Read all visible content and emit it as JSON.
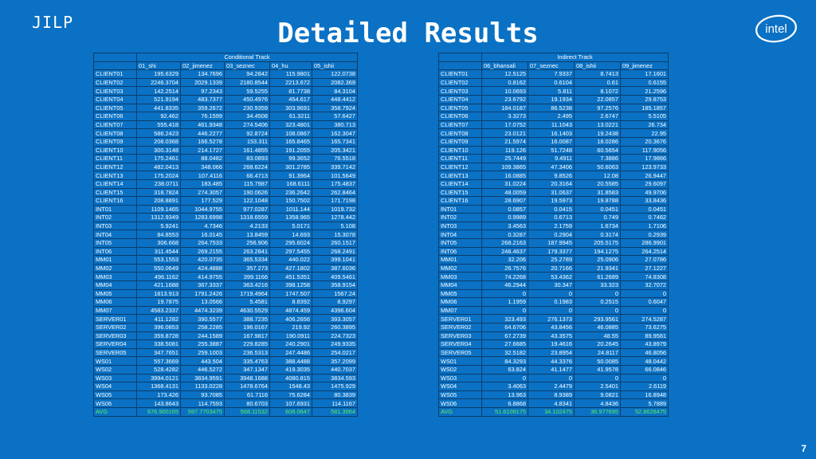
{
  "header": {
    "left_label": "JILP",
    "title": "Detailed Results",
    "logo_text": "intel",
    "page_number": "7"
  },
  "left_table": {
    "group_label": "Conditional Track",
    "columns": [
      "01_shi",
      "02_jimenez",
      "03_seznec",
      "04_hu",
      "05_ishii"
    ],
    "rows": [
      [
        "CLIENT01",
        "195.6329",
        "134.7696",
        "94.2842",
        "115.9801",
        "122.0738"
      ],
      [
        "CLIENT02",
        "2246.3704",
        "2029.1339",
        "2180.8544",
        "2213.672",
        "2082.369"
      ],
      [
        "CLIENT03",
        "142.2514",
        "97.2343",
        "59.5255",
        "81.7738",
        "84.3104"
      ],
      [
        "CLIENT04",
        "521.9194",
        "483.7377",
        "450.4976",
        "454.617",
        "448.4412"
      ],
      [
        "CLIENT05",
        "441.8335",
        "359.2672",
        "230.9359",
        "303.9691",
        "358.7924"
      ],
      [
        "CLIENT06",
        "92.462",
        "76.1599",
        "34.4508",
        "61.3211",
        "57.6427"
      ],
      [
        "CLIENT07",
        "555.418",
        "461.9348",
        "274.5406",
        "323.4801",
        "380.713"
      ],
      [
        "CLIENT08",
        "586.2423",
        "446.2277",
        "92.8724",
        "108.0867",
        "162.3047"
      ],
      [
        "CLIENT09",
        "208.0368",
        "166.5278",
        "153.311",
        "165.8465",
        "165.7341"
      ],
      [
        "CLIENT10",
        "300.3148",
        "214.1727",
        "161.4855",
        "191.2055",
        "205.3421"
      ],
      [
        "CLIENT11",
        "175.2461",
        "88.0482",
        "83.0893",
        "99.3652",
        "76.5518"
      ],
      [
        "CLIENT12",
        "482.0413",
        "348.066",
        "268.6224",
        "301.2785",
        "339.7142"
      ],
      [
        "CLIENT13",
        "175.2024",
        "107.4116",
        "66.4713",
        "91.3964",
        "101.5649"
      ],
      [
        "CLIENT14",
        "238.0711",
        "183.485",
        "115.7987",
        "168.6111",
        "175.4837"
      ],
      [
        "CLIENT15",
        "318.7824",
        "274.3057",
        "190.0626",
        "236.2642",
        "262.8464"
      ],
      [
        "CLIENT16",
        "208.8891",
        "177.529",
        "122.1048",
        "150.7502",
        "171.7198"
      ],
      [
        "INT01",
        "1109.1465",
        "1044.9755",
        "977.0287",
        "1011.144",
        "1019.732"
      ],
      [
        "INT02",
        "1312.9349",
        "1283.6998",
        "1318.6559",
        "1358.965",
        "1278.442"
      ],
      [
        "INT03",
        "5.9241",
        "4.7346",
        "4.2133",
        "5.0171",
        "5.108"
      ],
      [
        "INT04",
        "84.8553",
        "16.0145",
        "13.8459",
        "14.693",
        "15.3078"
      ],
      [
        "INT05",
        "306.668",
        "264.7533",
        "256.906",
        "295.6024",
        "260.1517"
      ],
      [
        "INT06",
        "311.4544",
        "269.2155",
        "263.2841",
        "297.5455",
        "268.2491"
      ],
      [
        "MM01",
        "553.1553",
        "420.0735",
        "365.5334",
        "440.022",
        "399.1041"
      ],
      [
        "MM02",
        "550.0649",
        "424.4888",
        "357.273",
        "427.1802",
        "387.6036"
      ],
      [
        "MM03",
        "496.1162",
        "414.9755",
        "399.1166",
        "451.5351",
        "409.5461"
      ],
      [
        "MM04",
        "421.1688",
        "367.3337",
        "363.4216",
        "398.1258",
        "358.9154"
      ],
      [
        "MM05",
        "1813.913",
        "1791.2426",
        "1719.4964",
        "1747.507",
        "1567.24"
      ],
      [
        "MM06",
        "19.7875",
        "13.0566",
        "5.4581",
        "8.8392",
        "8.9297"
      ],
      [
        "MM07",
        "4583.2337",
        "4474.3239",
        "4630.5529",
        "4874.459",
        "4396.604"
      ],
      [
        "SERVER01",
        "411.1282",
        "390.5577",
        "388.7235",
        "406.2656",
        "393.3057"
      ],
      [
        "SERVER02",
        "396.0853",
        "258.2285",
        "196.0167",
        "219.92",
        "260.3895"
      ],
      [
        "SERVER03",
        "359.8728",
        "244.1589",
        "167.9817",
        "190.0911",
        "224.7323"
      ],
      [
        "SERVER04",
        "338.5081",
        "255.3887",
        "229.8285",
        "240.2901",
        "249.9335"
      ],
      [
        "SERVER05",
        "347.7651",
        "259.1003",
        "236.5313",
        "247.4486",
        "254.0217"
      ],
      [
        "WS01",
        "557.3669",
        "443.504",
        "335.4763",
        "388.4488",
        "357.2099"
      ],
      [
        "WS02",
        "528.4282",
        "446.5272",
        "347.1347",
        "419.3035",
        "440.7037"
      ],
      [
        "WS03",
        "3994.0121",
        "3834.9591",
        "3948.1688",
        "4080.815",
        "3834.593"
      ],
      [
        "WS04",
        "1368.4131",
        "1133.0228",
        "1478.6764",
        "1548.43",
        "1475.929"
      ],
      [
        "WS05",
        "173.426",
        "93.7085",
        "61.7116",
        "75.6284",
        "80.3839"
      ],
      [
        "WS06",
        "143.8643",
        "114.7593",
        "80.6703",
        "107.6931",
        "114.1167"
      ]
    ],
    "avg": [
      "AVG",
      "676.900165",
      "597.7703475",
      "568.11532",
      "608.0647",
      "581.3964"
    ]
  },
  "right_table": {
    "group_label": "Indirect Track",
    "columns": [
      "06_bhansali",
      "07_seznec",
      "08_ishii",
      "09_jimenez"
    ],
    "rows": [
      [
        "CLIENT01",
        "12.5125",
        "7.9337",
        "8.7413",
        "17.1601"
      ],
      [
        "CLIENT02",
        "0.8162",
        "0.6104",
        "0.61",
        "0.6155"
      ],
      [
        "CLIENT03",
        "10.0693",
        "5.811",
        "8.1072",
        "21.2596"
      ],
      [
        "CLIENT04",
        "23.6792",
        "19.1934",
        "22.0857",
        "29.8753"
      ],
      [
        "CLIENT05",
        "184.0187",
        "86.5238",
        "97.2576",
        "185.1857"
      ],
      [
        "CLIENT06",
        "3.3273",
        "2.495",
        "2.6747",
        "5.5105"
      ],
      [
        "CLIENT07",
        "17.0752",
        "11.1043",
        "13.0221",
        "26.734"
      ],
      [
        "CLIENT08",
        "23.0121",
        "16.1403",
        "19.2438",
        "22.95"
      ],
      [
        "CLIENT09",
        "21.5974",
        "16.0087",
        "18.0286",
        "20.3676"
      ],
      [
        "CLIENT10",
        "119.126",
        "51.7248",
        "60.5654",
        "117.9056"
      ],
      [
        "CLIENT11",
        "25.7449",
        "9.4911",
        "7.3886",
        "17.9866"
      ],
      [
        "CLIENT12",
        "109.3865",
        "47.3406",
        "50.6063",
        "123.9733"
      ],
      [
        "CLIENT13",
        "16.0885",
        "9.8526",
        "12.08",
        "26.9447"
      ],
      [
        "CLIENT14",
        "31.0224",
        "20.3164",
        "20.5585",
        "29.6097"
      ],
      [
        "CLIENT15",
        "48.0059",
        "31.0637",
        "31.8583",
        "49.9706"
      ],
      [
        "CLIENT16",
        "28.6907",
        "19.5973",
        "19.8788",
        "33.8436"
      ],
      [
        "INT01",
        "0.0857",
        "0.0415",
        "0.0451",
        "0.0451"
      ],
      [
        "INT02",
        "0.9989",
        "0.6713",
        "0.749",
        "0.7462"
      ],
      [
        "INT03",
        "3.4563",
        "2.1759",
        "1.6734",
        "1.7106"
      ],
      [
        "INT04",
        "0.3287",
        "0.2904",
        "0.3174",
        "0.2939"
      ],
      [
        "INT05",
        "268.2163",
        "187.9945",
        "205.5175",
        "286.9901"
      ],
      [
        "INT06",
        "248.4637",
        "179.3377",
        "194.1275",
        "264.2514"
      ],
      [
        "MM01",
        "32.206",
        "25.2789",
        "25.0906",
        "27.0786"
      ],
      [
        "MM02",
        "26.7576",
        "20.7166",
        "21.9341",
        "27.1227"
      ],
      [
        "MM03",
        "74.2268",
        "53.4362",
        "61.2689",
        "74.8308"
      ],
      [
        "MM04",
        "46.2944",
        "30.347",
        "33.323",
        "32.7072"
      ],
      [
        "MM05",
        "0",
        "0",
        "0",
        "0"
      ],
      [
        "MM06",
        "1.1959",
        "0.1983",
        "0.2515",
        "0.6047"
      ],
      [
        "MM07",
        "0",
        "0",
        "0",
        "0"
      ],
      [
        "SERVER01",
        "323.493",
        "276.1373",
        "293.9561",
        "274.5287"
      ],
      [
        "SERVER02",
        "64.6706",
        "43.8456",
        "46.0885",
        "73.6275"
      ],
      [
        "SERVER03",
        "67.2739",
        "43.3575",
        "48.55",
        "89.9561"
      ],
      [
        "SERVER04",
        "27.6685",
        "19.4616",
        "20.2645",
        "43.8979"
      ],
      [
        "SERVER05",
        "32.5182",
        "23.8954",
        "24.8117",
        "46.8056"
      ],
      [
        "WS01",
        "84.3293",
        "44.3376",
        "50.0085",
        "48.0442"
      ],
      [
        "WS02",
        "63.824",
        "41.1477",
        "41.9578",
        "66.0846"
      ],
      [
        "WS03",
        "0",
        "0",
        "0",
        "0"
      ],
      [
        "WS04",
        "3.4063",
        "2.4479",
        "2.5401",
        "2.6119"
      ],
      [
        "WS05",
        "13.963",
        "8.9389",
        "9.0821",
        "16.8948"
      ],
      [
        "WS06",
        "6.8868",
        "4.8341",
        "4.8436",
        "5.7889"
      ]
    ],
    "avg": [
      "AVG",
      "51.6109175",
      "34.102475",
      "36.977695",
      "52.8628475"
    ]
  }
}
